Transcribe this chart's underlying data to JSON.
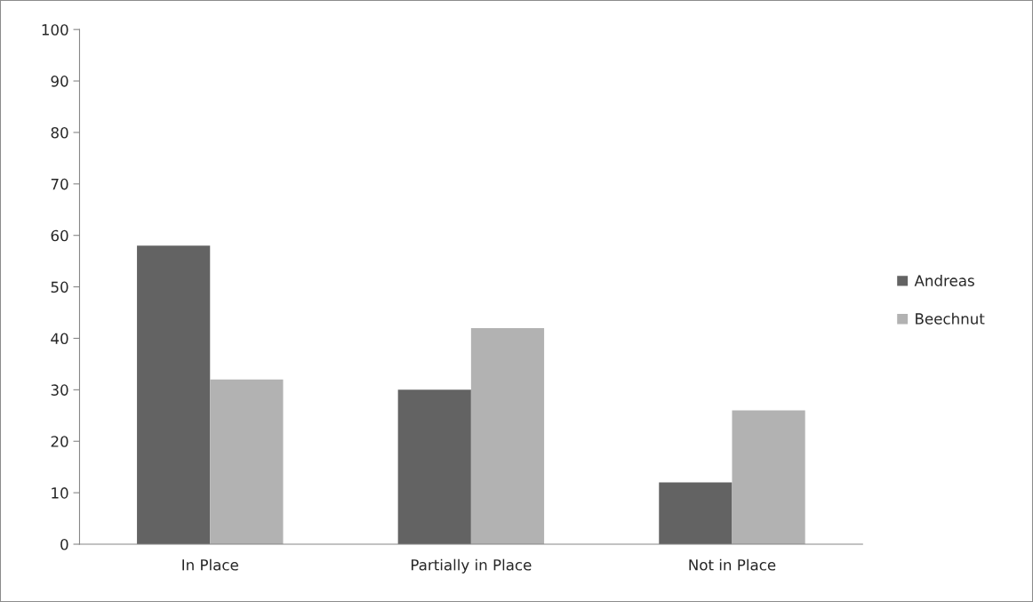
{
  "chart_data": {
    "type": "bar",
    "categories": [
      "In Place",
      "Partially in Place",
      "Not in Place"
    ],
    "series": [
      {
        "name": "Andreas",
        "color": "#636363",
        "values": [
          58,
          30,
          12
        ]
      },
      {
        "name": "Beechnut",
        "color": "#b2b2b2",
        "values": [
          32,
          42,
          26
        ]
      }
    ],
    "ylim": [
      0,
      100
    ],
    "yticks": [
      0,
      10,
      20,
      30,
      40,
      50,
      60,
      70,
      80,
      90,
      100
    ],
    "grid": false,
    "legend": "right"
  }
}
